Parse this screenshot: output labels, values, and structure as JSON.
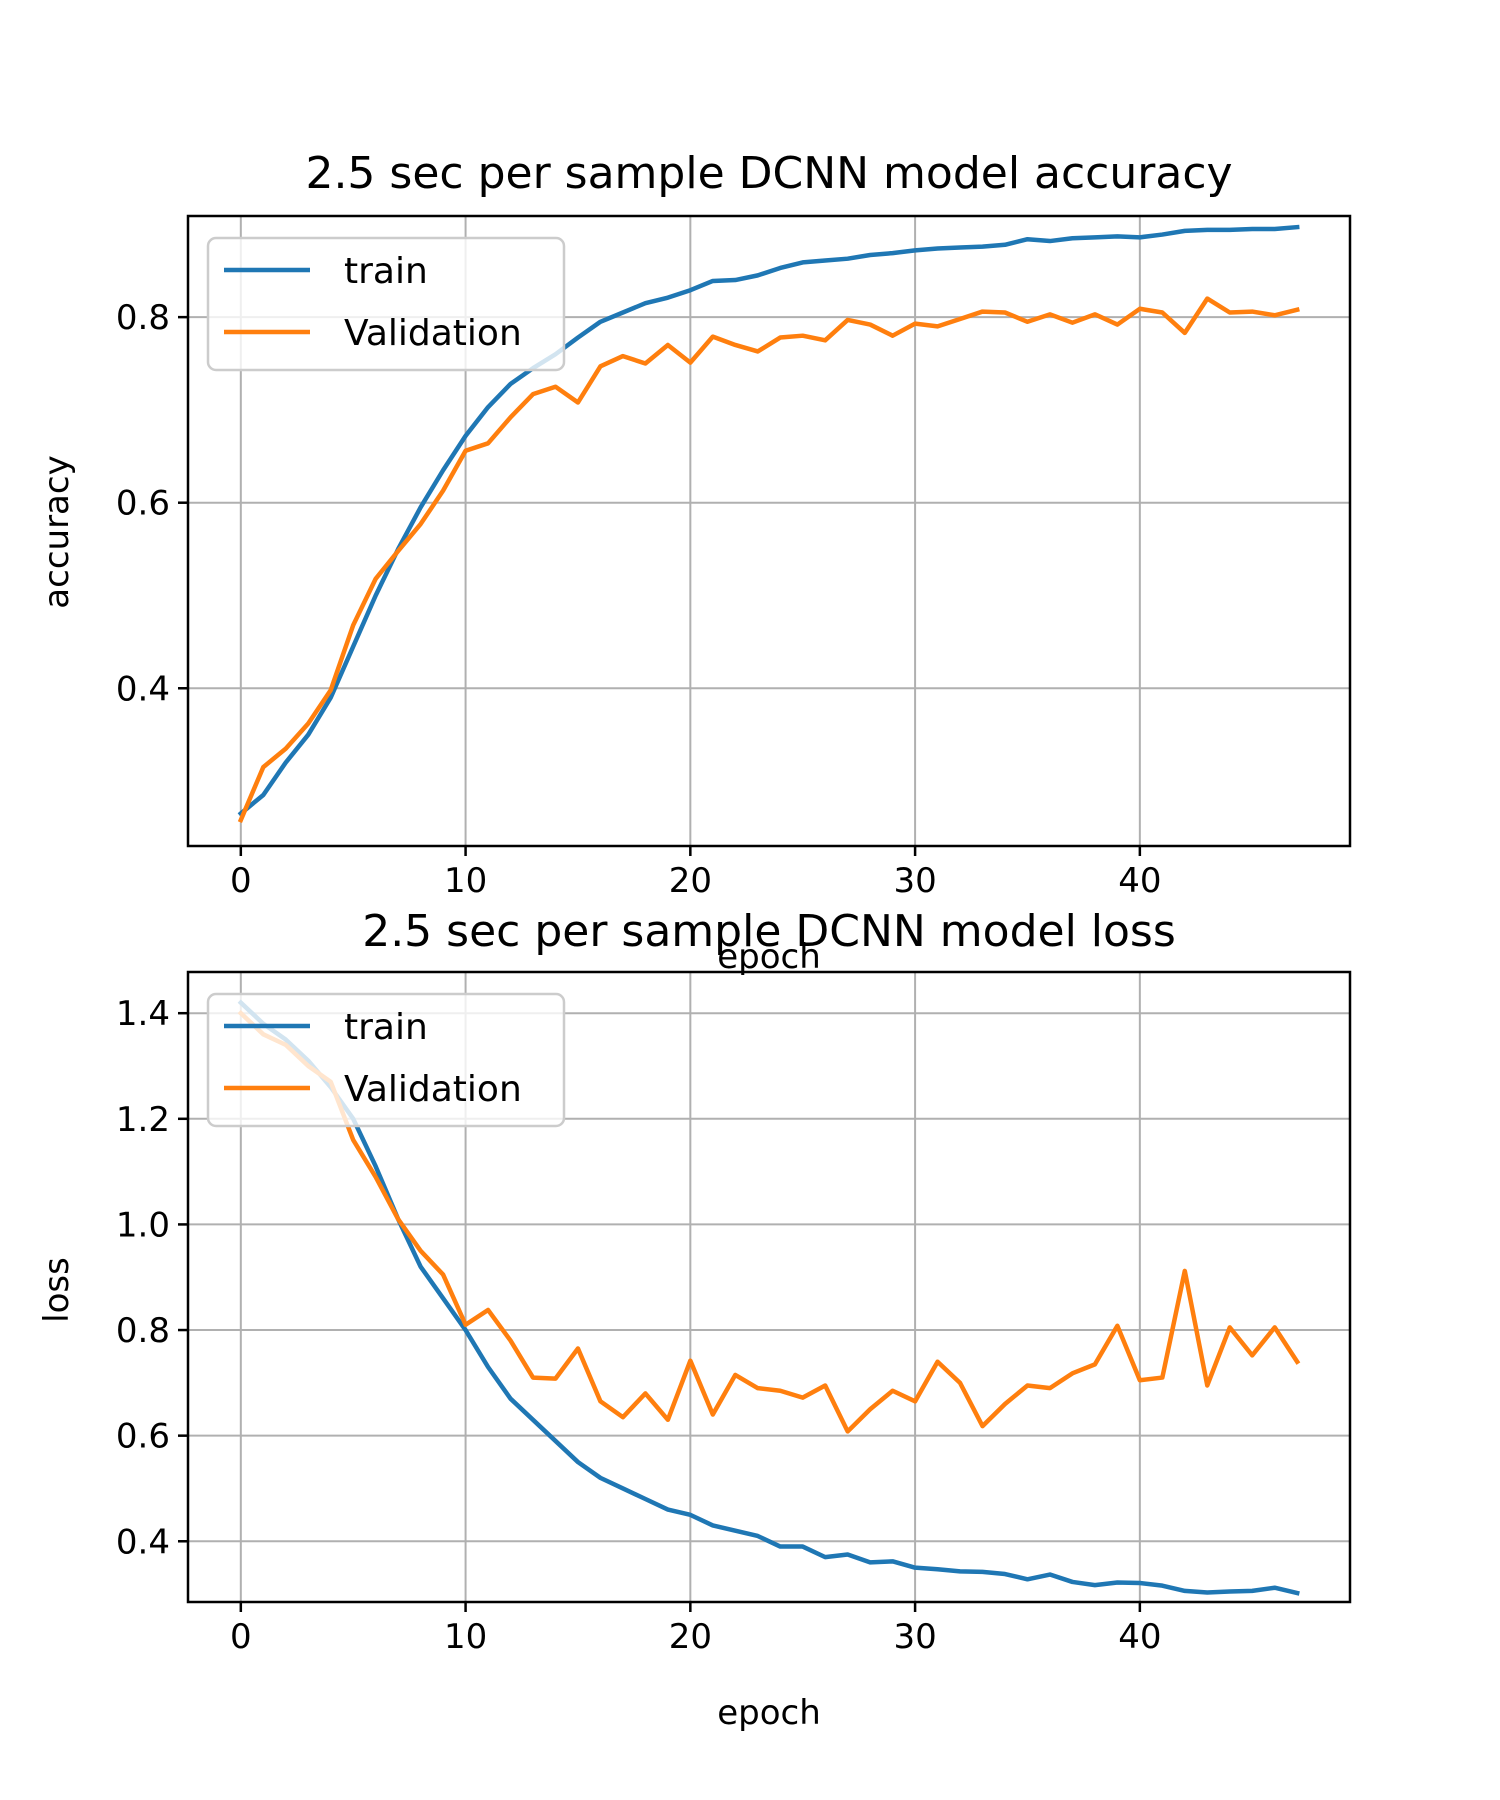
{
  "chart_data": [
    {
      "type": "line",
      "title": "2.5 sec per sample DCNN model accuracy",
      "xlabel": "epoch",
      "ylabel": "accuracy",
      "xlim": [
        -2.35,
        49.35
      ],
      "ylim": [
        0.23,
        0.909
      ],
      "xticks": [
        0,
        10,
        20,
        30,
        40
      ],
      "yticks": [
        0.4,
        0.6,
        0.8
      ],
      "ytick_labels": [
        "0.4",
        "0.6",
        "0.8"
      ],
      "grid": true,
      "legend_position": "upper-left",
      "colors": [
        "#1f77b4",
        "#ff7f0e"
      ],
      "series": [
        {
          "name": "train",
          "values": [
            0.265,
            0.285,
            0.32,
            0.35,
            0.39,
            0.445,
            0.5,
            0.55,
            0.595,
            0.635,
            0.672,
            0.703,
            0.728,
            0.745,
            0.76,
            0.778,
            0.795,
            0.805,
            0.815,
            0.821,
            0.829,
            0.839,
            0.84,
            0.845,
            0.853,
            0.859,
            0.861,
            0.863,
            0.867,
            0.869,
            0.872,
            0.874,
            0.875,
            0.876,
            0.878,
            0.884,
            0.882,
            0.885,
            0.886,
            0.887,
            0.886,
            0.889,
            0.893,
            0.894,
            0.894,
            0.895,
            0.895,
            0.897
          ]
        },
        {
          "name": "Validation",
          "values": [
            0.258,
            0.315,
            0.335,
            0.362,
            0.398,
            0.468,
            0.518,
            0.548,
            0.577,
            0.613,
            0.656,
            0.664,
            0.692,
            0.717,
            0.725,
            0.708,
            0.747,
            0.758,
            0.75,
            0.77,
            0.751,
            0.779,
            0.77,
            0.763,
            0.778,
            0.78,
            0.775,
            0.797,
            0.792,
            0.78,
            0.793,
            0.79,
            0.798,
            0.806,
            0.805,
            0.795,
            0.803,
            0.794,
            0.803,
            0.792,
            0.809,
            0.805,
            0.783,
            0.82,
            0.805,
            0.806,
            0.802,
            0.808
          ]
        }
      ]
    },
    {
      "type": "line",
      "title": "2.5 sec per sample DCNN model loss",
      "xlabel": "epoch",
      "ylabel": "loss",
      "xlim": [
        -2.35,
        49.35
      ],
      "ylim": [
        0.285,
        1.478
      ],
      "xticks": [
        0,
        10,
        20,
        30,
        40
      ],
      "yticks": [
        0.4,
        0.6,
        0.8,
        1.0,
        1.2,
        1.4
      ],
      "ytick_labels": [
        "0.4",
        "0.6",
        "0.8",
        "1.0",
        "1.2",
        "1.4"
      ],
      "grid": true,
      "legend_position": "upper-left",
      "colors": [
        "#1f77b4",
        "#ff7f0e"
      ],
      "series": [
        {
          "name": "train",
          "values": [
            1.42,
            1.38,
            1.35,
            1.31,
            1.26,
            1.2,
            1.11,
            1.01,
            0.92,
            0.86,
            0.8,
            0.73,
            0.67,
            0.63,
            0.59,
            0.55,
            0.52,
            0.5,
            0.48,
            0.46,
            0.45,
            0.43,
            0.42,
            0.41,
            0.39,
            0.39,
            0.37,
            0.375,
            0.36,
            0.362,
            0.35,
            0.347,
            0.343,
            0.342,
            0.338,
            0.328,
            0.337,
            0.323,
            0.317,
            0.322,
            0.321,
            0.316,
            0.306,
            0.303,
            0.305,
            0.306,
            0.312,
            0.302
          ]
        },
        {
          "name": "Validation",
          "values": [
            1.4,
            1.36,
            1.34,
            1.3,
            1.27,
            1.16,
            1.09,
            1.01,
            0.95,
            0.905,
            0.81,
            0.838,
            0.78,
            0.71,
            0.708,
            0.765,
            0.665,
            0.635,
            0.68,
            0.63,
            0.742,
            0.64,
            0.715,
            0.69,
            0.685,
            0.672,
            0.695,
            0.608,
            0.65,
            0.685,
            0.665,
            0.74,
            0.7,
            0.618,
            0.66,
            0.695,
            0.69,
            0.718,
            0.735,
            0.808,
            0.705,
            0.71,
            0.912,
            0.695,
            0.805,
            0.752,
            0.805,
            0.74
          ]
        }
      ]
    }
  ]
}
